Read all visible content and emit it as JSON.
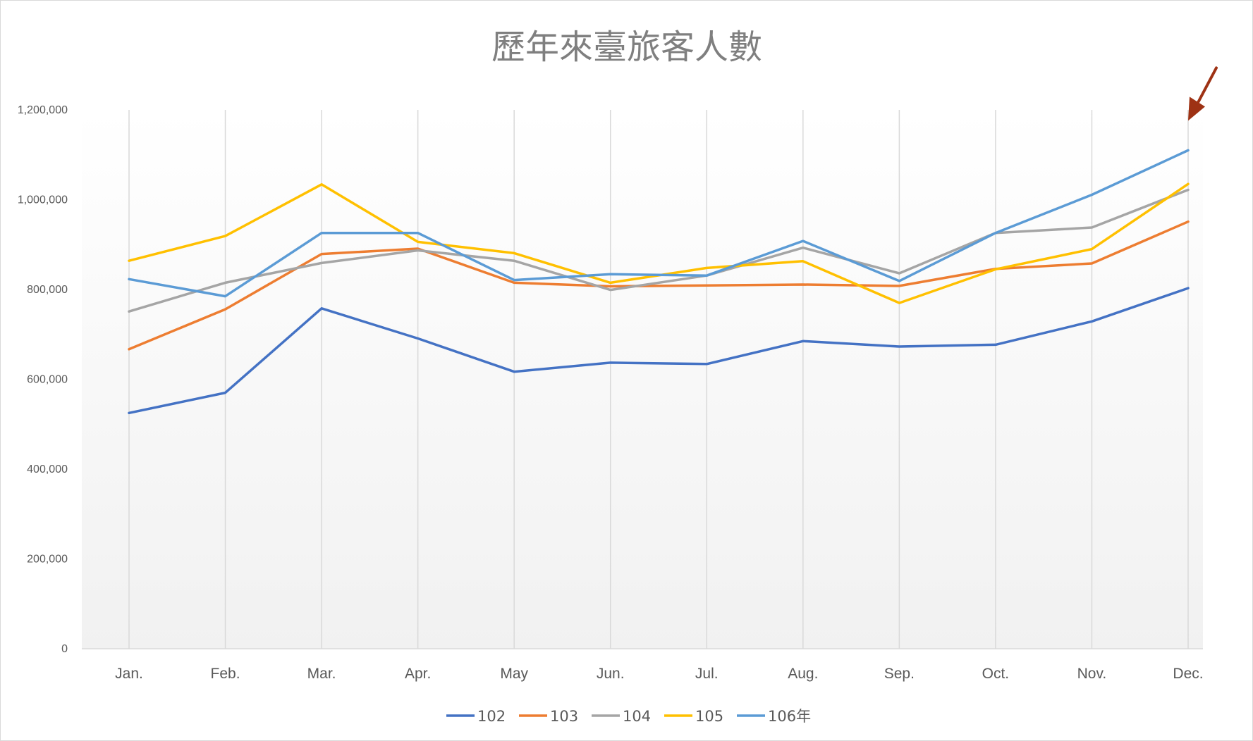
{
  "chart_data": {
    "type": "line",
    "title": "歷年來臺旅客人數",
    "xlabel": "",
    "ylabel": "",
    "categories": [
      "Jan.",
      "Feb.",
      "Mar.",
      "Apr.",
      "May",
      "Jun.",
      "Jul.",
      "Aug.",
      "Sep.",
      "Oct.",
      "Nov.",
      "Dec."
    ],
    "ylim": [
      0,
      1200000
    ],
    "yticks": [
      0,
      200000,
      400000,
      600000,
      800000,
      1000000,
      1200000
    ],
    "ytick_labels": [
      "0",
      "200,000",
      "400,000",
      "600,000",
      "800,000",
      "1,000,000",
      "1,200,000"
    ],
    "grid": "vertical lines at categories",
    "legend_position": "bottom",
    "series": [
      {
        "name": "102",
        "color": "#4472c4",
        "values": [
          525000,
          570000,
          758000,
          691000,
          617000,
          637000,
          634000,
          685000,
          673000,
          677000,
          729000,
          803000
        ]
      },
      {
        "name": "103",
        "color": "#ed7d31",
        "values": [
          667000,
          756000,
          879000,
          891000,
          815000,
          807000,
          809000,
          811000,
          808000,
          846000,
          858000,
          951000
        ]
      },
      {
        "name": "104",
        "color": "#a5a5a5",
        "values": [
          751000,
          815000,
          859000,
          887000,
          864000,
          799000,
          831000,
          893000,
          836000,
          926000,
          938000,
          1022000
        ]
      },
      {
        "name": "105",
        "color": "#ffc000",
        "values": [
          864000,
          919000,
          1034000,
          906000,
          881000,
          815000,
          848000,
          863000,
          770000,
          845000,
          890000,
          1035000
        ]
      },
      {
        "name": "106年",
        "color": "#5b9bd5",
        "values": [
          823000,
          785000,
          926000,
          926000,
          821000,
          834000,
          831000,
          908000,
          819000,
          926000,
          1011000,
          1110000
        ]
      }
    ],
    "annotation": {
      "type": "arrow",
      "color": "#9e3214",
      "target_category": "Dec.",
      "target_series": "106年"
    }
  }
}
